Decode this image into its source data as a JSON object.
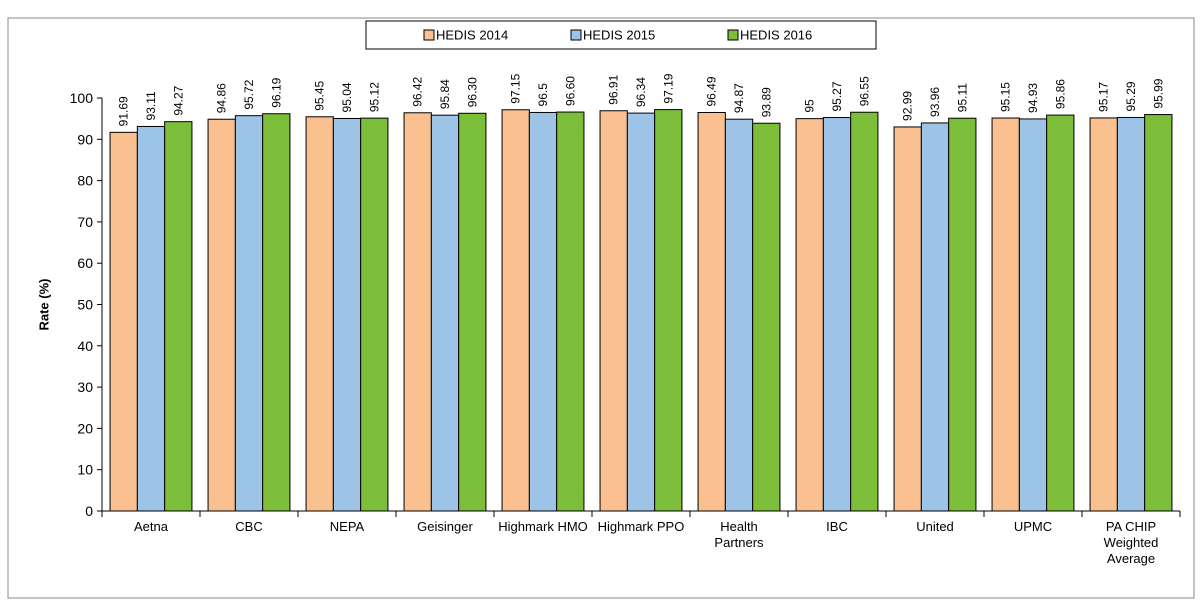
{
  "chart_data": {
    "type": "bar",
    "title": "",
    "xlabel": "",
    "ylabel": "Rate (%)",
    "ylim": [
      0,
      100
    ],
    "yticks": [
      0,
      10,
      20,
      30,
      40,
      50,
      60,
      70,
      80,
      90,
      100
    ],
    "grid": false,
    "legend_position": "top-center",
    "categories": [
      [
        "Aetna"
      ],
      [
        "CBC"
      ],
      [
        "NEPA"
      ],
      [
        "Geisinger"
      ],
      [
        "Highmark HMO"
      ],
      [
        "Highmark PPO"
      ],
      [
        "Health",
        "Partners"
      ],
      [
        "IBC"
      ],
      [
        "United"
      ],
      [
        "UPMC"
      ],
      [
        "PA CHIP",
        "Weighted",
        "Average"
      ]
    ],
    "series": [
      {
        "name": "HEDIS 2014",
        "color": "#FAC090",
        "values": [
          91.69,
          94.86,
          95.45,
          96.42,
          97.15,
          96.91,
          96.49,
          95,
          92.99,
          95.15,
          95.17
        ],
        "labels": [
          "91.69",
          "94.86",
          "95.45",
          "96.42",
          "97.15",
          "96.91",
          "96.49",
          "95",
          "92.99",
          "95.15",
          "95.17"
        ]
      },
      {
        "name": "HEDIS 2015",
        "color": "#9DC3E6",
        "values": [
          93.11,
          95.72,
          95.04,
          95.84,
          96.5,
          96.34,
          94.87,
          95.27,
          93.96,
          94.93,
          95.29
        ],
        "labels": [
          "93.11",
          "95.72",
          "95.04",
          "95.84",
          "96.5",
          "96.34",
          "94.87",
          "95.27",
          "93.96",
          "94.93",
          "95.29"
        ]
      },
      {
        "name": "HEDIS 2016",
        "color": "#7CBD3A",
        "values": [
          94.27,
          96.19,
          95.12,
          96.3,
          96.6,
          97.19,
          93.89,
          96.55,
          95.11,
          95.86,
          95.99
        ],
        "labels": [
          "94.27",
          "96.19",
          "95.12",
          "96.30",
          "96.60",
          "97.19",
          "93.89",
          "96.55",
          "95.11",
          "95.86",
          "95.99"
        ]
      }
    ]
  }
}
